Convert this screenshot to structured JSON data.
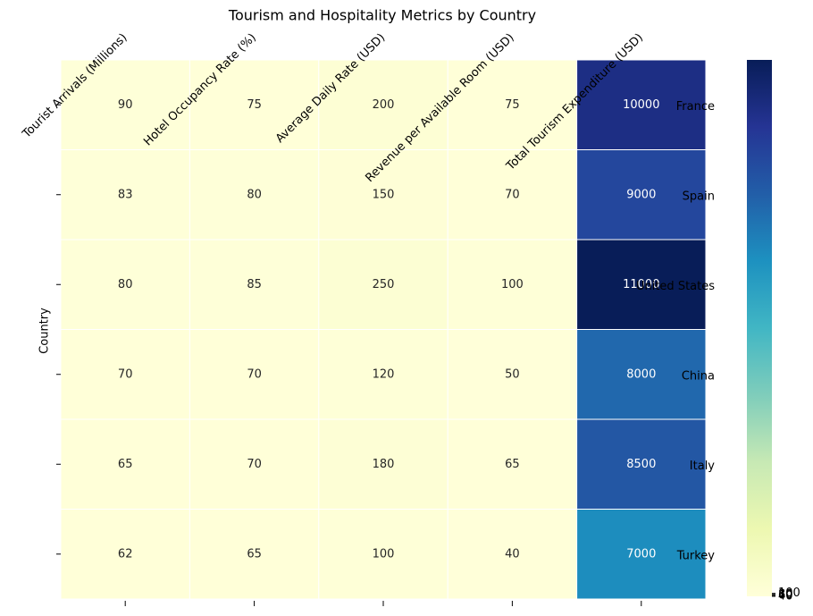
{
  "chart_data": {
    "type": "heatmap",
    "title": "Tourism and Hospitality Metrics by Country",
    "ylabel": "Country",
    "columns": [
      "Tourist Arrivals (Millions)",
      "Hotel Occupancy Rate (%)",
      "Average Daily Rate (USD)",
      "Revenue per Available Room (USD)",
      "Total Tourism Expenditure (USD)"
    ],
    "rows": [
      "France",
      "Spain",
      "United States",
      "China",
      "Italy",
      "Turkey"
    ],
    "values": [
      [
        90,
        75,
        200,
        75,
        10000
      ],
      [
        83,
        80,
        150,
        70,
        9000
      ],
      [
        80,
        85,
        250,
        100,
        11000
      ],
      [
        70,
        70,
        120,
        50,
        8000
      ],
      [
        65,
        70,
        180,
        65,
        8500
      ],
      [
        62,
        65,
        100,
        40,
        7000
      ]
    ],
    "colorscale": [
      "#ffffd9",
      "#edf8b1",
      "#c7e9b4",
      "#7fcdbb",
      "#41b6c4",
      "#1d91c0",
      "#225ea8",
      "#253494",
      "#081d58"
    ],
    "clim": [
      40,
      11000
    ],
    "cticks": [
      40,
      60,
      80,
      100
    ]
  }
}
